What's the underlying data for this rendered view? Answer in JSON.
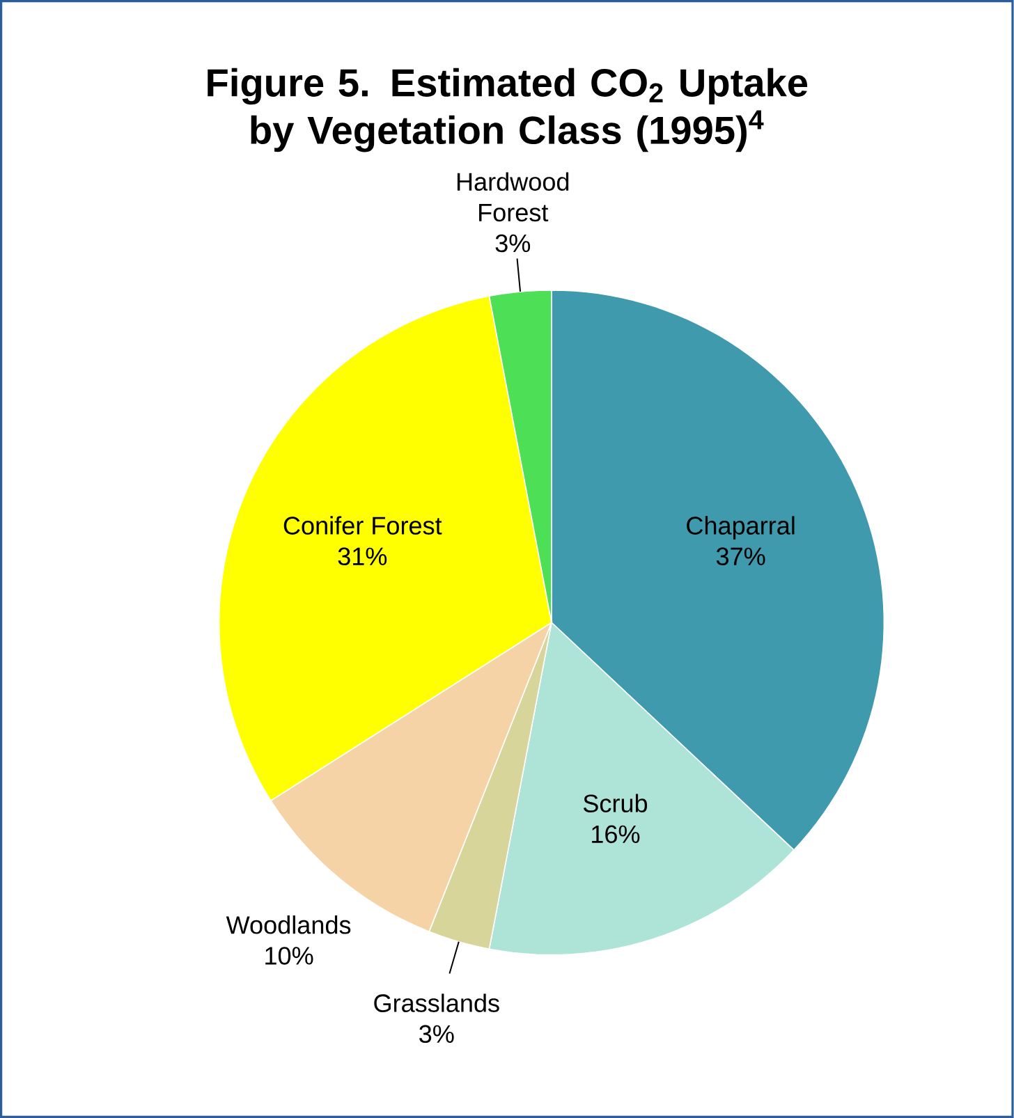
{
  "chart_data": {
    "type": "pie",
    "title": "Figure 5.  Estimated CO$_{2}$ Uptake by Vegetation Class (1995)$^{4}$",
    "categories": [
      "Chaparral",
      "Scrub",
      "Grasslands",
      "Woodlands",
      "Conifer Forest",
      "Hardwood Forest"
    ],
    "values": [
      37,
      16,
      3,
      10,
      31,
      3
    ],
    "value_labels": [
      "37%",
      "16%",
      "3%",
      "10%",
      "31%",
      "3%"
    ],
    "colors": [
      "#3f9aad",
      "#aee3d8",
      "#d8d59a",
      "#f5d3a6",
      "#ffff00",
      "#4ddf55"
    ]
  }
}
